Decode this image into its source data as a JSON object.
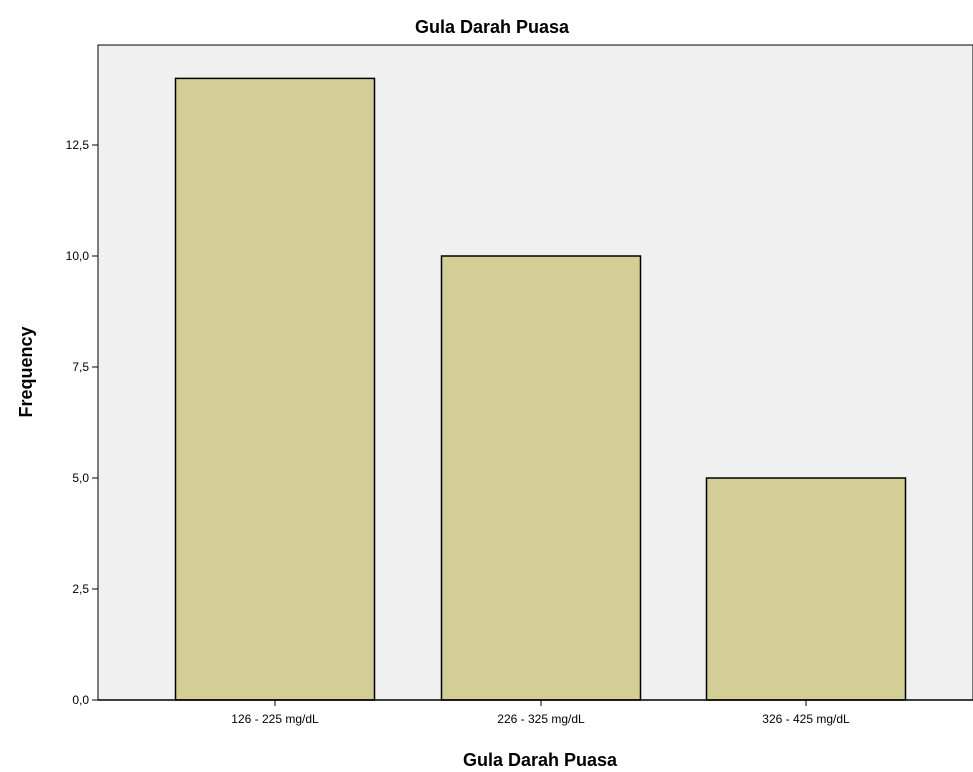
{
  "chart_data": {
    "type": "bar",
    "title": "Gula Darah Puasa",
    "xlabel": "Gula Darah Puasa",
    "ylabel": "Frequency",
    "categories": [
      "126 - 225 mg/dL",
      "226 - 325 mg/dL",
      "326 - 425 mg/dL"
    ],
    "values": [
      14,
      10,
      5
    ],
    "ylim": [
      0,
      14.5
    ],
    "yticks": [
      0,
      2.5,
      5,
      7.5,
      10,
      12.5
    ],
    "ytick_labels": [
      "0,0",
      "2,5",
      "5,0",
      "7,5",
      "10,0",
      "12,5"
    ],
    "grid": false,
    "legend": "none",
    "colors": {
      "bar_fill": "#d3cd96",
      "bar_stroke": "#000000",
      "plot_background": "#f0f0f0",
      "page_background": "#ffffff"
    }
  }
}
